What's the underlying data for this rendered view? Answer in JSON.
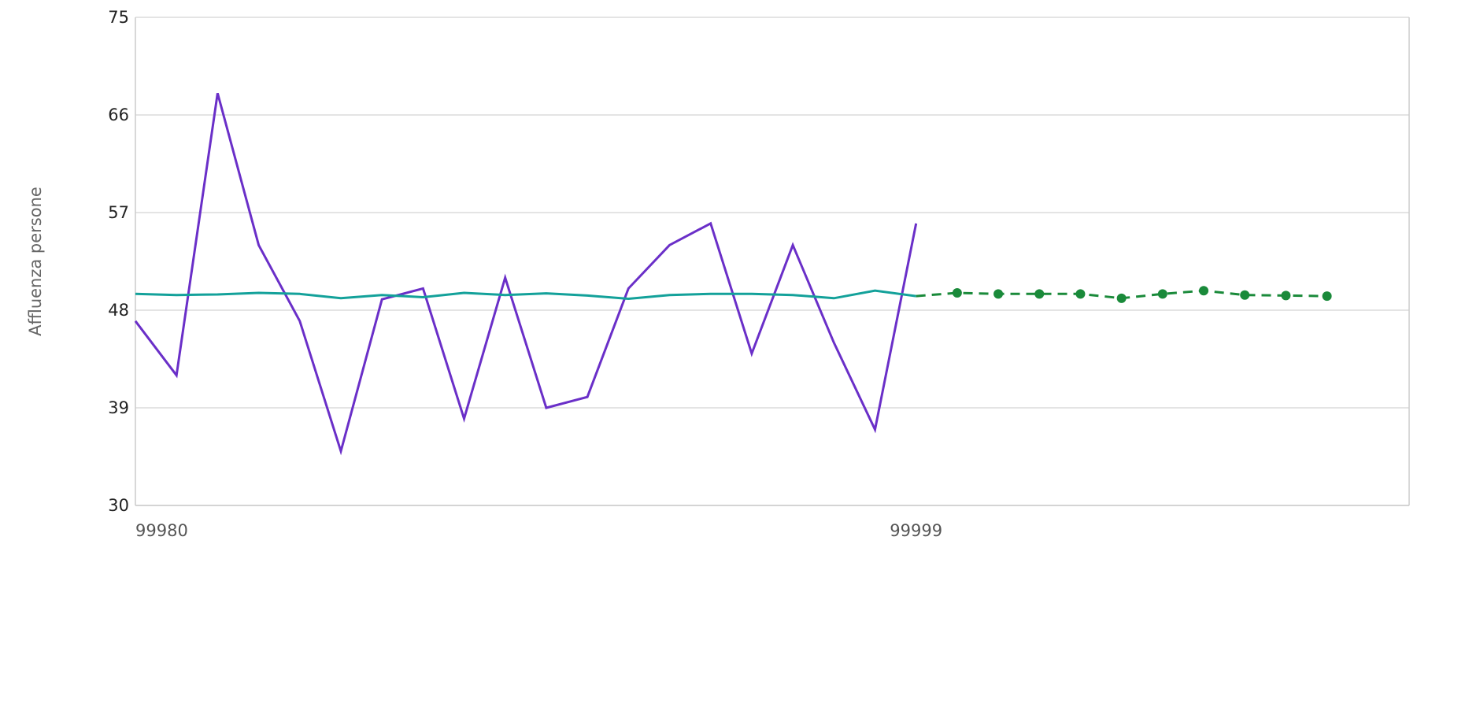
{
  "chart_data": {
    "type": "line",
    "title": "",
    "xlabel": "",
    "ylabel": "Affluenza persone",
    "ylim": [
      30,
      75
    ],
    "yticks": [
      30,
      39,
      48,
      57,
      66,
      75
    ],
    "ytick_labels": [
      "30",
      "39",
      "48",
      "57",
      "66",
      "75"
    ],
    "xlim": [
      99980,
      100011
    ],
    "xticks": [
      99980,
      99999
    ],
    "xtick_labels": [
      "99980",
      "99999"
    ],
    "grid": "horizontal",
    "legend": "none",
    "series": [
      {
        "style": "solid",
        "color": "#6a2fc8",
        "x": [
          99980,
          99981,
          99982,
          99983,
          99984,
          99985,
          99986,
          99987,
          99988,
          99989,
          99990,
          99991,
          99992,
          99993,
          99994,
          99995,
          99996,
          99997,
          99998,
          99999
        ],
        "y": [
          47,
          42,
          68,
          54,
          47,
          35,
          49,
          50,
          38,
          51,
          39,
          40,
          50,
          54,
          56,
          44,
          54,
          45,
          37,
          56
        ]
      },
      {
        "style": "solid",
        "color": "#13a19a",
        "x": [
          99980,
          99981,
          99982,
          99983,
          99984,
          99985,
          99986,
          99987,
          99988,
          99989,
          99990,
          99991,
          99992,
          99993,
          99994,
          99995,
          99996,
          99997,
          99998,
          99999
        ],
        "y": [
          49.5,
          49.4,
          49.45,
          49.6,
          49.5,
          49.1,
          49.4,
          49.2,
          49.6,
          49.4,
          49.55,
          49.35,
          49.05,
          49.4,
          49.5,
          49.5,
          49.4,
          49.1,
          49.8,
          49.3
        ]
      },
      {
        "style": "dashed-markers",
        "color": "#1a8a3a",
        "x": [
          99999,
          100000,
          100001,
          100002,
          100003,
          100004,
          100005,
          100006,
          100007,
          100008,
          100009
        ],
        "y": [
          49.3,
          49.6,
          49.5,
          49.5,
          49.5,
          49.1,
          49.5,
          49.8,
          49.4,
          49.35,
          49.3
        ]
      }
    ]
  }
}
